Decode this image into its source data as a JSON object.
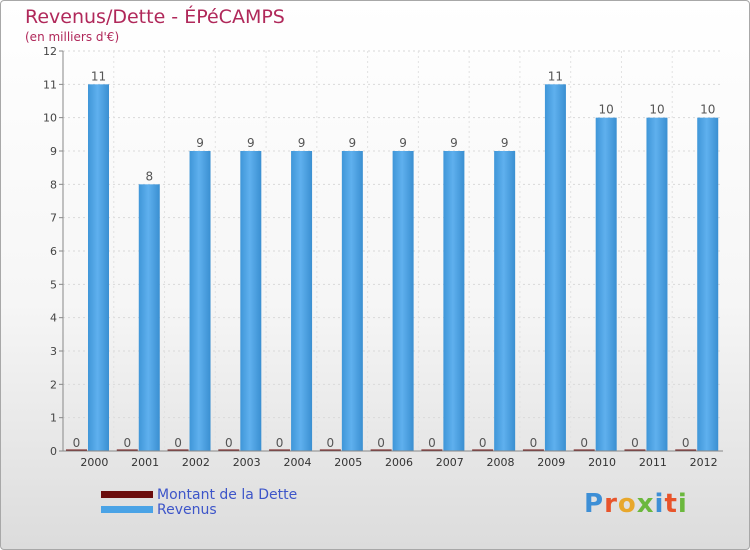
{
  "title": "Revenus/Dette - ÉPéCAMPS",
  "subtitle": "(en milliers d'€)",
  "chart_data": {
    "type": "bar",
    "categories": [
      "2000",
      "2001",
      "2002",
      "2003",
      "2004",
      "2005",
      "2006",
      "2007",
      "2008",
      "2009",
      "2010",
      "2011",
      "2012"
    ],
    "series": [
      {
        "name": "Montant de la Dette",
        "color": "#6b0d0d",
        "values": [
          0,
          0,
          0,
          0,
          0,
          0,
          0,
          0,
          0,
          0,
          0,
          0,
          0
        ]
      },
      {
        "name": "Revenus",
        "color": "#4aa3e6",
        "values": [
          11,
          8,
          9,
          9,
          9,
          9,
          9,
          9,
          9,
          11,
          10,
          10,
          10
        ]
      }
    ],
    "ylim": [
      0,
      12
    ],
    "yticks": [
      "0",
      "1",
      "2",
      "3",
      "4",
      "5",
      "6",
      "7",
      "8",
      "9",
      "10",
      "11",
      "12"
    ],
    "grid": true,
    "legend_position": "bottom-left"
  },
  "legend": {
    "items": [
      {
        "label": "Montant de la Dette",
        "color": "#6b0d0d"
      },
      {
        "label": "Revenus",
        "color": "#4aa3e6"
      }
    ]
  },
  "logo": {
    "text": "Proxiti",
    "letter_colors": [
      "#3d8fd6",
      "#e8542b",
      "#e8a72b",
      "#6bb83d",
      "#3d8fd6",
      "#e8542b",
      "#6bb83d"
    ]
  }
}
